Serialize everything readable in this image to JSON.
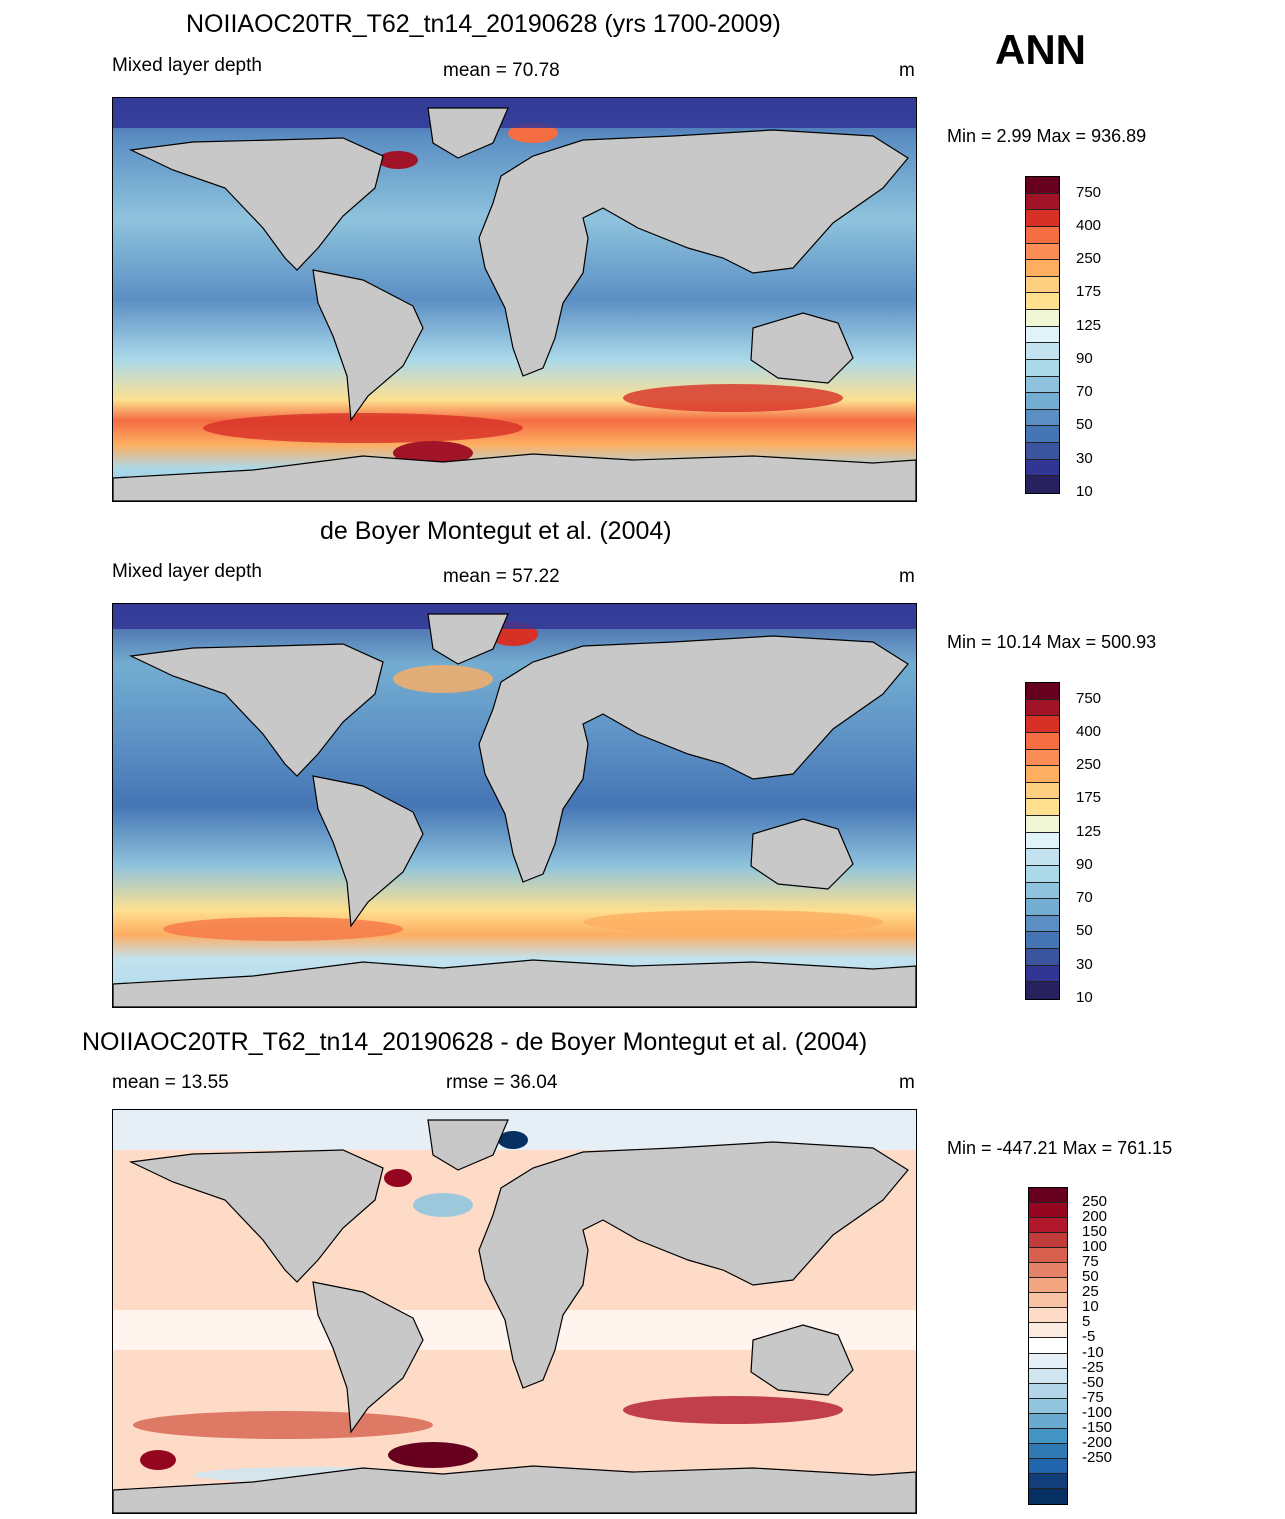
{
  "header": {
    "season": "ANN"
  },
  "panels": [
    {
      "title": "NOIIAOC20TR_T62_tn14_20190628 (yrs 1700-2009)",
      "left_label": "Mixed layer depth",
      "center_label": "mean =  70.78",
      "units": "m",
      "minmax": "Min =   2.99 Max = 936.89",
      "colorbar_labels": [
        "750",
        "400",
        "250",
        "175",
        "125",
        "90",
        "70",
        "50",
        "30",
        "10"
      ],
      "colorbar_colors": [
        "#67001f",
        "#a11327",
        "#d73027",
        "#f46d43",
        "#fb8d57",
        "#fdae61",
        "#fecf80",
        "#fee090",
        "#f1f7d4",
        "#e0f3f8",
        "#c3e2ef",
        "#abd9e9",
        "#8fc3dd",
        "#74add1",
        "#5b8fc4",
        "#4575b4",
        "#3a559e",
        "#313695",
        "#27215f"
      ],
      "value_range": [
        10,
        750
      ]
    },
    {
      "title": "de Boyer Montegut et al. (2004)",
      "left_label": "Mixed layer depth",
      "center_label": "mean =  57.22",
      "units": "m",
      "minmax": "Min =  10.14 Max = 500.93",
      "colorbar_labels": [
        "750",
        "400",
        "250",
        "175",
        "125",
        "90",
        "70",
        "50",
        "30",
        "10"
      ],
      "colorbar_colors": [
        "#67001f",
        "#a11327",
        "#d73027",
        "#f46d43",
        "#fb8d57",
        "#fdae61",
        "#fecf80",
        "#fee090",
        "#f1f7d4",
        "#e0f3f8",
        "#c3e2ef",
        "#abd9e9",
        "#8fc3dd",
        "#74add1",
        "#5b8fc4",
        "#4575b4",
        "#3a559e",
        "#313695",
        "#27215f"
      ],
      "value_range": [
        10,
        750
      ]
    },
    {
      "title": "NOIIAOC20TR_T62_tn14_20190628 - de Boyer Montegut et al. (2004)",
      "left_label": "mean =  13.55",
      "center_label": "rmse =  36.04",
      "units": "m",
      "minmax": "Min = -447.21 Max = 761.15",
      "colorbar_labels": [
        "250",
        "200",
        "150",
        "100",
        "75",
        "50",
        "25",
        "10",
        "5",
        "-5",
        "-10",
        "-25",
        "-50",
        "-75",
        "-100",
        "-150",
        "-200",
        "-250"
      ],
      "colorbar_colors": [
        "#67001f",
        "#94061f",
        "#b2182b",
        "#c23b3b",
        "#d6604d",
        "#e58267",
        "#f4a582",
        "#f8c3a5",
        "#fddbc7",
        "#fbeadf",
        "#ffffff",
        "#e6eff6",
        "#d1e5f0",
        "#b3d3e8",
        "#92c5de",
        "#6aaad0",
        "#4393c3",
        "#2f79b5",
        "#2166ac",
        "#123f7a",
        "#053061"
      ],
      "value_range": [
        -250,
        250
      ]
    }
  ]
}
